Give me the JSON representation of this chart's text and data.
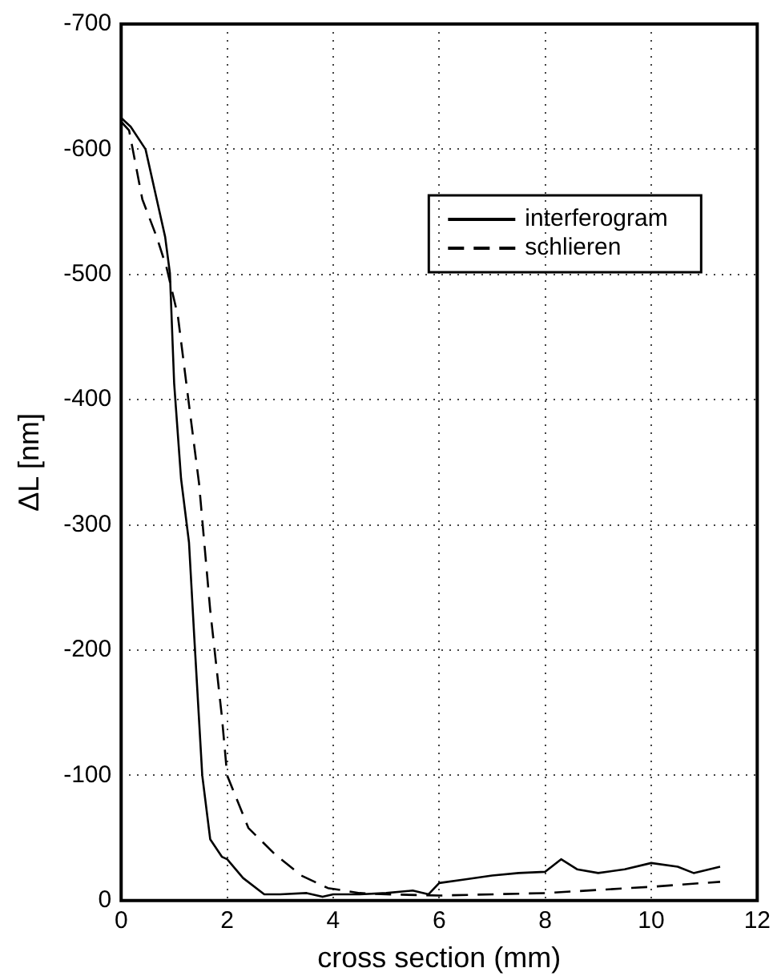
{
  "chart_data": {
    "type": "line",
    "xlabel": "cross section (mm)",
    "ylabel": "ΔL [nm]",
    "xlim": [
      0,
      12
    ],
    "xticks": [
      0,
      2,
      4,
      6,
      8,
      10,
      12
    ],
    "ylim": [
      0,
      -700
    ],
    "yticks": [
      0,
      -100,
      -200,
      -300,
      -400,
      -500,
      -600,
      -700
    ],
    "grid": true,
    "legend": "top right",
    "marker": "none",
    "series": [
      {
        "name": "interferogram",
        "color": "#000000",
        "line_style": "solid",
        "x": [
          0,
          0.18,
          0.46,
          0.83,
          0.92,
          1.0,
          1.13,
          1.28,
          1.38,
          1.53,
          1.68,
          1.9,
          2.0,
          2.3,
          2.7,
          3.0,
          3.5,
          3.8,
          4.0,
          4.5,
          5.0,
          5.5,
          5.8,
          6.0,
          6.5,
          7.0,
          7.5,
          8.0,
          8.3,
          8.6,
          9.0,
          9.5,
          10.0,
          10.5,
          10.8,
          11.3
        ],
        "values": [
          -625,
          -618,
          -600,
          -530,
          -501,
          -413,
          -337,
          -286,
          -210,
          -100,
          -49,
          -35,
          -33,
          -18,
          -5,
          -5,
          -6,
          -3,
          -5,
          -5,
          -6,
          -8,
          -5,
          -14,
          -17,
          -20,
          -22,
          -23,
          -33,
          -25,
          -22,
          -25,
          -30,
          -27,
          -22,
          -27
        ]
      },
      {
        "name": "schlieren",
        "color": "#000000",
        "line_style": "dashed",
        "x": [
          0,
          0.15,
          0.4,
          0.67,
          0.86,
          1.07,
          1.28,
          1.47,
          1.68,
          1.9,
          2.0,
          2.4,
          2.9,
          3.4,
          3.9,
          4.5,
          5.0,
          6.0,
          8.0,
          10.0,
          11.3
        ],
        "values": [
          -622,
          -615,
          -560,
          -530,
          -505,
          -467,
          -396,
          -333,
          -232,
          -147,
          -100,
          -58,
          -37,
          -20,
          -10,
          -6,
          -5,
          -4,
          -6,
          -11,
          -15
        ]
      }
    ]
  }
}
